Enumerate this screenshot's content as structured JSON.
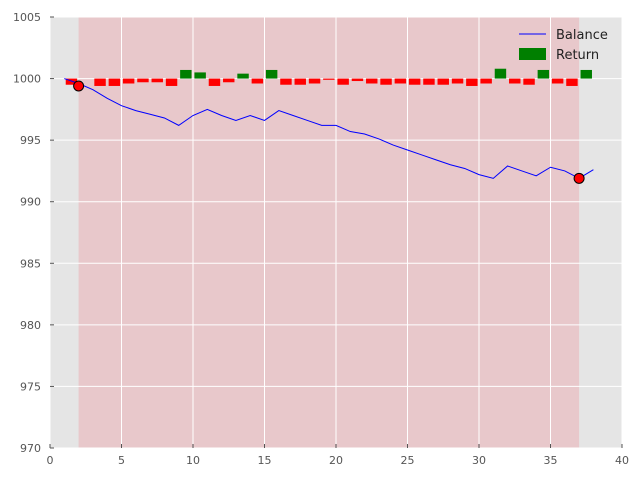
{
  "chart_data": {
    "type": "line",
    "title": "",
    "xlabel": "",
    "ylabel": "",
    "xlim": [
      0,
      40
    ],
    "ylim": [
      970,
      1005
    ],
    "xticks": [
      0,
      5,
      10,
      15,
      20,
      25,
      30,
      35,
      40
    ],
    "yticks": [
      970,
      975,
      980,
      985,
      990,
      995,
      1000,
      1005
    ],
    "grid": true,
    "legend_position": "top-right",
    "highlight_span": [
      2,
      37
    ],
    "colors": {
      "background": "#e5e5e5",
      "span": "#e8c8cb",
      "balance": "#0000ff",
      "positive_return": "#007f00",
      "negative_return": "#ff0000",
      "marker": "#ff0000"
    },
    "series": [
      {
        "name": "Balance",
        "style": "line",
        "x": [
          1,
          2,
          3,
          4,
          5,
          6,
          7,
          8,
          9,
          10,
          11,
          12,
          13,
          14,
          15,
          16,
          17,
          18,
          19,
          20,
          21,
          22,
          23,
          24,
          25,
          26,
          27,
          28,
          29,
          30,
          31,
          32,
          33,
          34,
          35,
          36,
          37,
          38
        ],
        "y": [
          1000.0,
          999.6,
          999.1,
          998.4,
          997.8,
          997.4,
          997.1,
          996.8,
          996.2,
          997.0,
          997.5,
          997.0,
          996.6,
          997.0,
          996.6,
          997.4,
          997.0,
          996.6,
          996.2,
          996.2,
          995.7,
          995.5,
          995.1,
          994.6,
          994.2,
          993.8,
          993.4,
          993.0,
          992.7,
          992.2,
          991.9,
          992.9,
          992.5,
          992.1,
          992.8,
          992.5,
          991.9,
          992.6
        ]
      },
      {
        "name": "Return",
        "style": "bar",
        "baseline": 1000,
        "x": [
          1.5,
          3.5,
          4.5,
          5.5,
          6.5,
          7.5,
          8.5,
          9.5,
          10.5,
          11.5,
          12.5,
          13.5,
          14.5,
          15.5,
          16.5,
          17.5,
          18.5,
          19.5,
          20.5,
          21.5,
          22.5,
          23.5,
          24.5,
          25.5,
          26.5,
          27.5,
          28.5,
          29.5,
          30.5,
          31.5,
          32.5,
          33.5,
          34.5,
          35.5,
          36.5,
          37.5
        ],
        "values": [
          -0.5,
          -0.6,
          -0.6,
          -0.4,
          -0.3,
          -0.3,
          -0.6,
          0.7,
          0.5,
          -0.6,
          -0.3,
          0.4,
          -0.4,
          0.7,
          -0.5,
          -0.5,
          -0.4,
          -0.1,
          -0.5,
          -0.2,
          -0.4,
          -0.5,
          -0.4,
          -0.5,
          -0.5,
          -0.5,
          -0.4,
          -0.6,
          -0.4,
          0.8,
          -0.4,
          -0.5,
          0.7,
          -0.4,
          -0.6,
          0.7
        ]
      }
    ],
    "markers": {
      "x": [
        2,
        37
      ],
      "y": [
        999.4,
        991.9
      ]
    }
  }
}
